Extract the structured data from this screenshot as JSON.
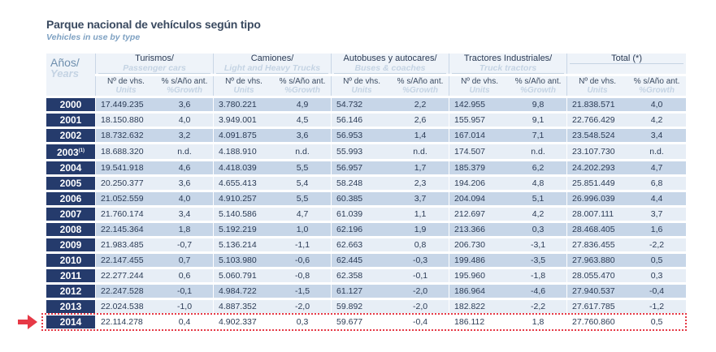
{
  "title": "Parque nacional de vehículos según tipo",
  "subtitle": "Vehicles in use by type",
  "accent_colors": {
    "year_cell": "#253b6c",
    "row_dark": "#c7d6e8",
    "row_light": "#e7eef6",
    "highlight": "#e63946"
  },
  "header": {
    "year_es": "Años/",
    "year_en": "Years",
    "groups": [
      {
        "es": "Turismos/",
        "en": "Passenger cars"
      },
      {
        "es": "Camiones/",
        "en": "Light and Heavy Trucks"
      },
      {
        "es": "Autobuses y autocares/",
        "en": "Buses & coaches"
      },
      {
        "es": "Tractores Industriales/",
        "en": "Truck tractors"
      },
      {
        "es": "Total (*)",
        "en": ""
      }
    ],
    "sub_units_es": "Nº de vhs.",
    "sub_units_en": "Units",
    "sub_growth_es": "% s/Año ant.",
    "sub_growth_en": "%Growth"
  },
  "rows": [
    {
      "year": "2000",
      "note": "",
      "v": [
        "17.449.235",
        "3,6",
        "3.780.221",
        "4,9",
        "54.732",
        "2,2",
        "142.955",
        "9,8",
        "21.838.571",
        "4,0"
      ]
    },
    {
      "year": "2001",
      "note": "",
      "v": [
        "18.150.880",
        "4,0",
        "3.949.001",
        "4,5",
        "56.146",
        "2,6",
        "155.957",
        "9,1",
        "22.766.429",
        "4,2"
      ]
    },
    {
      "year": "2002",
      "note": "",
      "v": [
        "18.732.632",
        "3,2",
        "4.091.875",
        "3,6",
        "56.953",
        "1,4",
        "167.014",
        "7,1",
        "23.548.524",
        "3,4"
      ]
    },
    {
      "year": "2003",
      "note": "(1)",
      "v": [
        "18.688.320",
        "n.d.",
        "4.188.910",
        "n.d.",
        "55.993",
        "n.d.",
        "174.507",
        "n.d.",
        "23.107.730",
        "n.d."
      ]
    },
    {
      "year": "2004",
      "note": "",
      "v": [
        "19.541.918",
        "4,6",
        "4.418.039",
        "5,5",
        "56.957",
        "1,7",
        "185.379",
        "6,2",
        "24.202.293",
        "4,7"
      ]
    },
    {
      "year": "2005",
      "note": "",
      "v": [
        "20.250.377",
        "3,6",
        "4.655.413",
        "5,4",
        "58.248",
        "2,3",
        "194.206",
        "4,8",
        "25.851.449",
        "6,8"
      ]
    },
    {
      "year": "2006",
      "note": "",
      "v": [
        "21.052.559",
        "4,0",
        "4.910.257",
        "5,5",
        "60.385",
        "3,7",
        "204.094",
        "5,1",
        "26.996.039",
        "4,4"
      ]
    },
    {
      "year": "2007",
      "note": "",
      "v": [
        "21.760.174",
        "3,4",
        "5.140.586",
        "4,7",
        "61.039",
        "1,1",
        "212.697",
        "4,2",
        "28.007.111",
        "3,7"
      ]
    },
    {
      "year": "2008",
      "note": "",
      "v": [
        "22.145.364",
        "1,8",
        "5.192.219",
        "1,0",
        "62.196",
        "1,9",
        "213.366",
        "0,3",
        "28.468.405",
        "1,6"
      ]
    },
    {
      "year": "2009",
      "note": "",
      "v": [
        "21.983.485",
        "-0,7",
        "5.136.214",
        "-1,1",
        "62.663",
        "0,8",
        "206.730",
        "-3,1",
        "27.836.455",
        "-2,2"
      ]
    },
    {
      "year": "2010",
      "note": "",
      "v": [
        "22.147.455",
        "0,7",
        "5.103.980",
        "-0,6",
        "62.445",
        "-0,3",
        "199.486",
        "-3,5",
        "27.963.880",
        "0,5"
      ]
    },
    {
      "year": "2011",
      "note": "",
      "v": [
        "22.277.244",
        "0,6",
        "5.060.791",
        "-0,8",
        "62.358",
        "-0,1",
        "195.960",
        "-1,8",
        "28.055.470",
        "0,3"
      ]
    },
    {
      "year": "2012",
      "note": "",
      "v": [
        "22.247.528",
        "-0,1",
        "4.984.722",
        "-1,5",
        "61.127",
        "-2,0",
        "186.964",
        "-4,6",
        "27.940.537",
        "-0,4"
      ]
    },
    {
      "year": "2013",
      "note": "",
      "v": [
        "22.024.538",
        "-1,0",
        "4.887.352",
        "-2,0",
        "59.892",
        "-2,0",
        "182.822",
        "-2,2",
        "27.617.785",
        "-1,2"
      ]
    },
    {
      "year": "2014",
      "note": "",
      "v": [
        "22.114.278",
        "0,4",
        "4.902.337",
        "0,3",
        "59.677",
        "-0,4",
        "186.112",
        "1,8",
        "27.760.860",
        "0,5"
      ]
    }
  ],
  "highlighted_year": "2014"
}
